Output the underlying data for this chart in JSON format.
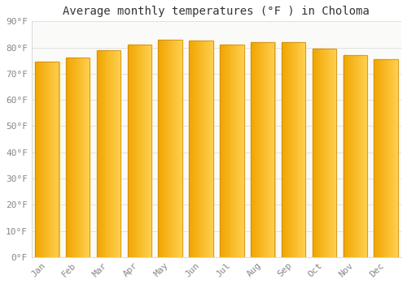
{
  "months": [
    "Jan",
    "Feb",
    "Mar",
    "Apr",
    "May",
    "Jun",
    "Jul",
    "Aug",
    "Sep",
    "Oct",
    "Nov",
    "Dec"
  ],
  "values": [
    74.5,
    76.0,
    79.0,
    81.0,
    83.0,
    82.5,
    81.0,
    82.0,
    82.0,
    79.5,
    77.0,
    75.5
  ],
  "bar_color_left": "#F0A500",
  "bar_color_right": "#FFD050",
  "bar_edge_color": "#C8860A",
  "title": "Average monthly temperatures (°F ) in Choloma",
  "ylim": [
    0,
    90
  ],
  "yticks": [
    0,
    10,
    20,
    30,
    40,
    50,
    60,
    70,
    80,
    90
  ],
  "ytick_labels": [
    "0°F",
    "10°F",
    "20°F",
    "30°F",
    "40°F",
    "50°F",
    "60°F",
    "70°F",
    "80°F",
    "90°F"
  ],
  "background_color": "#FFFFFF",
  "plot_bg_color": "#FAFAF8",
  "grid_color": "#DDDDDD",
  "title_fontsize": 10,
  "tick_fontsize": 8,
  "tick_color": "#888888"
}
